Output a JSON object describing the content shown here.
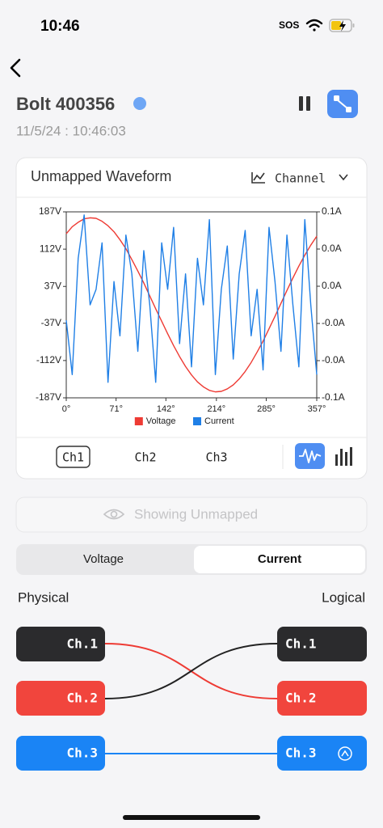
{
  "status_bar": {
    "time": "10:46",
    "carrier": "SOS"
  },
  "header": {
    "title": "Bolt 400356",
    "timestamp": "11/5/24 : 10:46:03"
  },
  "card": {
    "title": "Unmapped Waveform",
    "dropdown": "Channel"
  },
  "chart_data": {
    "type": "line",
    "x": [
      0,
      8.5,
      17,
      25.5,
      34,
      42.5,
      51,
      59.5,
      68,
      76.5,
      85,
      93.5,
      102,
      110.5,
      119,
      127.5,
      136,
      144.5,
      153,
      161.5,
      170,
      178.5,
      187,
      195.5,
      204,
      212.5,
      221,
      229.5,
      238,
      246.5,
      255,
      263.5,
      272,
      280.5,
      289,
      297.5,
      306,
      314.5,
      323,
      331.5,
      340,
      348.5,
      357
    ],
    "xlim": [
      0,
      357
    ],
    "xticks": [
      {
        "value": 0,
        "label": "0°"
      },
      {
        "value": 71,
        "label": "71°"
      },
      {
        "value": 142,
        "label": "142°"
      },
      {
        "value": 214,
        "label": "214°"
      },
      {
        "value": 285,
        "label": "285°"
      },
      {
        "value": 357,
        "label": "357°"
      }
    ],
    "ylim": [
      -187,
      187
    ],
    "yticks": [
      {
        "value": 187,
        "label": "187V"
      },
      {
        "value": 112,
        "label": "112V"
      },
      {
        "value": 37,
        "label": "37V"
      },
      {
        "value": -37,
        "label": "-37V"
      },
      {
        "value": -112,
        "label": "-112V"
      },
      {
        "value": -187,
        "label": "-187V"
      }
    ],
    "y2lim": [
      -0.06,
      0.06
    ],
    "y2ticks": [
      {
        "value": 0.06,
        "label": "0.1A"
      },
      {
        "value": 0.036,
        "label": "0.0A"
      },
      {
        "value": 0.012,
        "label": "0.0A"
      },
      {
        "value": -0.012,
        "label": "-0.0A"
      },
      {
        "value": -0.036,
        "label": "-0.0A"
      },
      {
        "value": -0.06,
        "label": "-0.1A"
      }
    ],
    "grid": false,
    "legend": "bottom",
    "series": [
      {
        "name": "Voltage",
        "color": "#ee3b34",
        "values": [
          143,
          157,
          166,
          173,
          175,
          174,
          168,
          159,
          147,
          131,
          113,
          91,
          68,
          44,
          18,
          -8,
          -33,
          -58,
          -82,
          -104,
          -124,
          -141,
          -155,
          -165,
          -172,
          -175,
          -174,
          -169,
          -161,
          -149,
          -134,
          -116,
          -95,
          -73,
          -48,
          -23,
          3,
          29,
          54,
          78,
          100,
          120,
          138
        ]
      },
      {
        "name": "Current",
        "color": "#1f7fe6",
        "axis": "y2",
        "values": [
          -0.01,
          -0.045,
          0.03,
          0.058,
          0.0,
          0.01,
          0.04,
          -0.05,
          0.015,
          -0.02,
          0.045,
          0.02,
          -0.03,
          0.035,
          0.0,
          -0.05,
          0.04,
          0.01,
          0.05,
          -0.025,
          0.02,
          -0.04,
          0.03,
          0.0,
          0.055,
          -0.045,
          0.01,
          0.038,
          -0.035,
          0.02,
          0.048,
          -0.02,
          0.01,
          -0.042,
          0.05,
          0.015,
          -0.03,
          0.045,
          0.0,
          -0.04,
          0.055,
          0.0,
          -0.045
        ]
      }
    ]
  },
  "channel_tabs": [
    "Ch1",
    "Ch2",
    "Ch3"
  ],
  "show_button": "Showing Unmapped",
  "segment": [
    "Voltage",
    "Current"
  ],
  "mapping": {
    "left_label": "Physical",
    "right_label": "Logical",
    "physical": [
      "Ch.1",
      "Ch.2",
      "Ch.3"
    ],
    "logical": [
      "Ch.1",
      "Ch.2",
      "Ch.3"
    ]
  }
}
